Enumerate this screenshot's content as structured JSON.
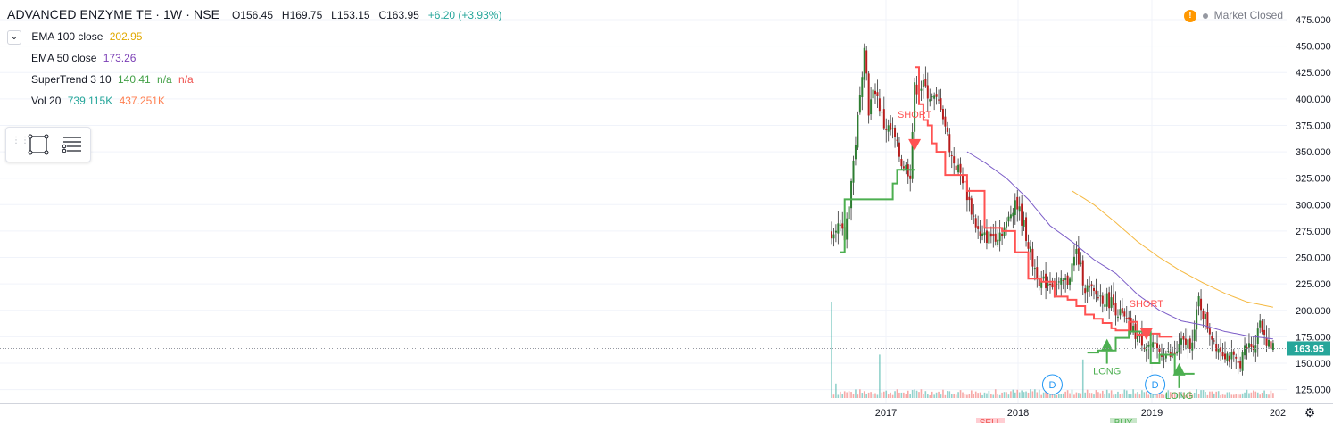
{
  "header": {
    "symbol": "ADVANCED ENZYME TE · 1W · NSE",
    "open": "O156.45",
    "high": "H169.75",
    "low": "L153.15",
    "close": "C163.95",
    "change": "+6.20 (+3.93%)"
  },
  "legend": [
    {
      "name": "EMA 100 close",
      "value": "202.95",
      "color": "#e0a800"
    },
    {
      "name": "EMA 50 close",
      "value": "173.26",
      "color": "#7b3fb5"
    },
    {
      "name": "SuperTrend 3 10",
      "value": "140.41",
      "value2": "n/a",
      "value3": "n/a",
      "color": "#43a047",
      "color2": "#ef5350"
    },
    {
      "name": "Vol 20",
      "value": "739.115K",
      "value2": "437.251K",
      "color": "#26a69a",
      "color2": "#ff7f50"
    }
  ],
  "status": {
    "text": "Market Closed"
  },
  "price_label": "163.95",
  "chart_data": {
    "type": "candlestick",
    "y_axis": {
      "min": 112,
      "max": 478,
      "ticks": [
        125,
        150,
        175,
        200,
        225,
        250,
        275,
        300,
        325,
        350,
        375,
        400,
        425,
        450,
        475
      ]
    },
    "x_axis": {
      "labels": [
        "2017",
        "2018",
        "2019",
        "202"
      ]
    },
    "series": [
      {
        "name": "price",
        "anchors": [
          [
            0,
            275
          ],
          [
            2,
            282
          ],
          [
            6,
            268
          ],
          [
            10,
            340
          ],
          [
            13,
            400
          ],
          [
            15,
            455
          ],
          [
            17,
            390
          ],
          [
            20,
            410
          ],
          [
            24,
            375
          ],
          [
            28,
            368
          ],
          [
            32,
            340
          ],
          [
            36,
            330
          ],
          [
            38,
            410
          ],
          [
            42,
            412
          ],
          [
            46,
            400
          ],
          [
            50,
            395
          ],
          [
            55,
            345
          ],
          [
            60,
            325
          ],
          [
            64,
            295
          ],
          [
            68,
            268
          ],
          [
            72,
            270
          ],
          [
            76,
            272
          ],
          [
            80,
            280
          ],
          [
            84,
            305
          ],
          [
            88,
            280
          ],
          [
            92,
            245
          ],
          [
            96,
            225
          ],
          [
            100,
            228
          ],
          [
            104,
            223
          ],
          [
            108,
            228
          ],
          [
            112,
            255
          ],
          [
            116,
            222
          ],
          [
            120,
            215
          ],
          [
            124,
            212
          ],
          [
            128,
            208
          ],
          [
            132,
            196
          ],
          [
            136,
            185
          ],
          [
            140,
            175
          ],
          [
            144,
            168
          ],
          [
            148,
            162
          ],
          [
            152,
            160
          ],
          [
            156,
            155
          ],
          [
            160,
            168
          ],
          [
            164,
            170
          ],
          [
            166,
            180
          ],
          [
            168,
            210
          ],
          [
            172,
            185
          ],
          [
            176,
            168
          ],
          [
            180,
            160
          ],
          [
            184,
            152
          ],
          [
            186,
            148
          ],
          [
            190,
            165
          ],
          [
            194,
            170
          ],
          [
            196,
            192
          ],
          [
            198,
            178
          ],
          [
            200,
            166
          ],
          [
            202,
            163.95
          ]
        ]
      },
      {
        "name": "EMA 50 close",
        "anchors": [
          [
            62,
            350
          ],
          [
            70,
            340
          ],
          [
            80,
            325
          ],
          [
            90,
            305
          ],
          [
            100,
            280
          ],
          [
            110,
            265
          ],
          [
            120,
            248
          ],
          [
            130,
            235
          ],
          [
            140,
            215
          ],
          [
            150,
            200
          ],
          [
            160,
            190
          ],
          [
            170,
            186
          ],
          [
            180,
            180
          ],
          [
            190,
            176
          ],
          [
            202,
            173
          ]
        ]
      },
      {
        "name": "EMA 100 close",
        "anchors": [
          [
            110,
            313
          ],
          [
            120,
            300
          ],
          [
            130,
            283
          ],
          [
            140,
            265
          ],
          [
            150,
            250
          ],
          [
            160,
            237
          ],
          [
            170,
            226
          ],
          [
            180,
            216
          ],
          [
            190,
            208
          ],
          [
            202,
            203
          ]
        ]
      },
      {
        "name": "SuperTrend 3 10 up",
        "steps": [
          [
            4,
            255
          ],
          [
            6,
            305
          ],
          [
            26,
            305
          ],
          [
            28,
            320
          ],
          [
            30,
            333
          ],
          [
            38,
            333
          ]
        ]
      },
      {
        "name": "SuperTrend 3 10 down",
        "steps": [
          [
            38,
            430
          ],
          [
            40,
            395
          ],
          [
            42,
            380
          ],
          [
            44,
            375
          ],
          [
            46,
            358
          ],
          [
            48,
            350
          ],
          [
            52,
            328
          ],
          [
            60,
            328
          ],
          [
            62,
            313
          ],
          [
            70,
            278
          ],
          [
            78,
            275
          ],
          [
            84,
            255
          ],
          [
            90,
            230
          ],
          [
            96,
            227
          ],
          [
            102,
            213
          ],
          [
            108,
            210
          ],
          [
            112,
            204
          ],
          [
            116,
            196
          ],
          [
            120,
            192
          ],
          [
            124,
            188
          ],
          [
            128,
            183
          ],
          [
            130,
            181
          ],
          [
            136,
            189
          ],
          [
            140,
            177
          ],
          [
            146,
            178
          ],
          [
            150,
            175
          ],
          [
            156,
            175
          ]
        ]
      },
      {
        "name": "SuperTrend 3 10 up 2",
        "steps": [
          [
            117,
            160
          ],
          [
            122,
            162
          ],
          [
            130,
            174
          ],
          [
            136,
            180
          ],
          [
            146,
            150
          ],
          [
            150,
            158
          ],
          [
            154,
            158
          ],
          [
            157,
            140
          ],
          [
            166,
            140
          ]
        ]
      }
    ],
    "annotations": [
      {
        "text": "SHORT",
        "x": 38,
        "y": 362,
        "type": "short"
      },
      {
        "text": "SHORT",
        "x": 144,
        "y": 183,
        "type": "short"
      },
      {
        "text": "LONG",
        "x": 126,
        "y": 163,
        "type": "long"
      },
      {
        "text": "LONG",
        "x": 159,
        "y": 140,
        "type": "long"
      },
      {
        "text": "D",
        "x": 101,
        "y": 1,
        "type": "dividend"
      },
      {
        "text": "D",
        "x": 148,
        "y": 1,
        "type": "dividend"
      }
    ],
    "volume_spikes": [
      [
        0,
        1.0
      ],
      [
        2,
        0.15
      ],
      [
        22,
        0.45
      ],
      [
        41,
        0.09
      ],
      [
        75,
        0.09
      ],
      [
        93,
        0.09
      ],
      [
        115,
        0.4
      ]
    ],
    "bottom_markers": [
      "SELL",
      "BUY"
    ]
  }
}
